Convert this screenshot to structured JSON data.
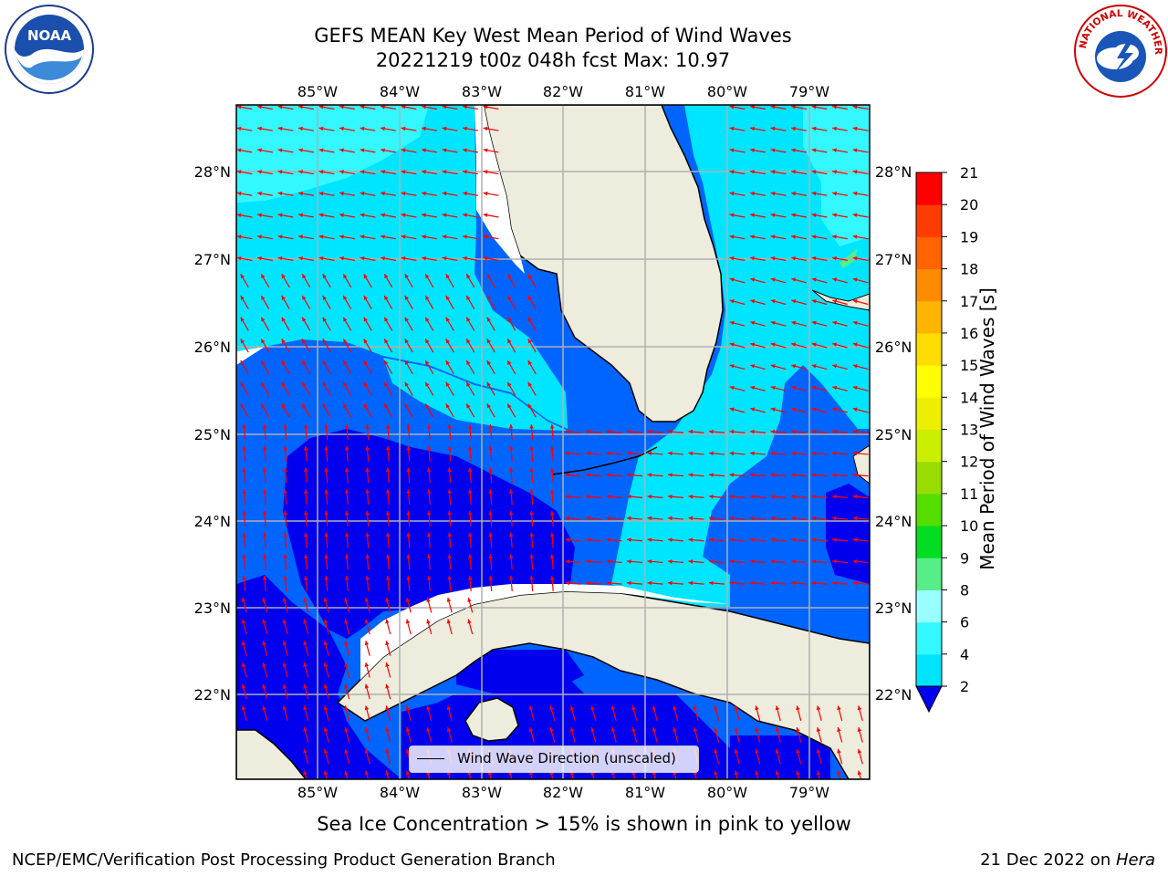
{
  "title": {
    "line1": "GEFS MEAN Key West Mean Period of Wind Waves",
    "line2": "20221219 t00z 048h fcst   Max: 10.97"
  },
  "map": {
    "lon_labels": [
      "85°W",
      "84°W",
      "83°W",
      "82°W",
      "81°W",
      "80°W",
      "79°W"
    ],
    "lat_labels": [
      "28°N",
      "27°N",
      "26°N",
      "25°N",
      "24°N",
      "23°N",
      "22°N"
    ],
    "legend_label": "Wind Wave Direction (unscaled)",
    "land_color": "#eeecdd",
    "vector_color": "#ff0000"
  },
  "colorbar": {
    "label": "Mean Period of Wind Waves [s]",
    "ticks": [
      "2",
      "4",
      "6",
      "8",
      "9",
      "10",
      "11",
      "12",
      "13",
      "14",
      "15",
      "16",
      "17",
      "18",
      "19",
      "20",
      "21"
    ],
    "colors": [
      "#0064ff",
      "#00e5ff",
      "#33f8ff",
      "#99ffff",
      "#55ee88",
      "#00dd22",
      "#55dd00",
      "#99dd00",
      "#ccee00",
      "#eeee00",
      "#ffff00",
      "#ffdd00",
      "#ffb400",
      "#ff8c00",
      "#ff6400",
      "#ff3c00",
      "#ff0000"
    ],
    "under_color": "#0000ee"
  },
  "footer": {
    "ice_note": "Sea Ice Concentration > 15% is shown in pink to yellow",
    "left": "NCEP/EMC/Verification Post Processing Product Generation Branch",
    "date": "21 Dec 2022 on ",
    "machine": "Hera"
  },
  "logos": {
    "noaa": "NOAA",
    "nws_text": "NATIONAL WEATHER SERVICE"
  }
}
